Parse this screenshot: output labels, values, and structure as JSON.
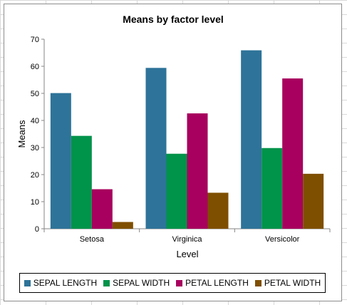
{
  "chart_data": {
    "type": "bar",
    "title": "Means by factor level",
    "xlabel": "Level",
    "ylabel": "Means",
    "ylim": [
      0,
      70
    ],
    "yticks": [
      0,
      10,
      20,
      30,
      40,
      50,
      60,
      70
    ],
    "categories": [
      "Setosa",
      "Virginica",
      "Versicolor"
    ],
    "series": [
      {
        "name": "SEPAL LENGTH",
        "color": "#2e7399",
        "values": [
          50.1,
          59.4,
          65.9
        ]
      },
      {
        "name": "SEPAL WIDTH",
        "color": "#00934a",
        "values": [
          34.3,
          27.7,
          29.8
        ]
      },
      {
        "name": "PETAL LENGTH",
        "color": "#a8005e",
        "values": [
          14.6,
          42.6,
          55.5
        ]
      },
      {
        "name": "PETAL WIDTH",
        "color": "#7f4f00",
        "values": [
          2.5,
          13.3,
          20.3
        ]
      }
    ],
    "legend_position": "bottom",
    "grid": false
  }
}
